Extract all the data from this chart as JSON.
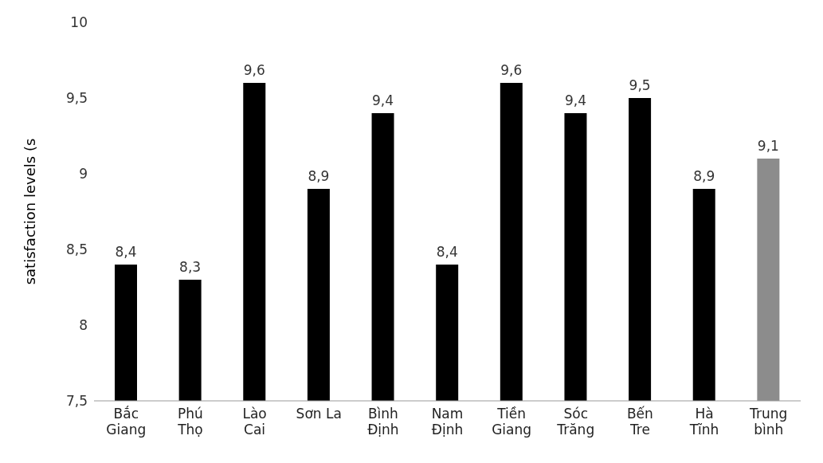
{
  "chart_data": {
    "type": "bar",
    "ylabel": "satisfaction levels (s",
    "categories": [
      "Bắc\nGiang",
      "Phú\nThọ",
      "Lào\nCai",
      "Sơn La",
      "Bình\nĐịnh",
      "Nam\nĐịnh",
      "Tiền\nGiang",
      "Sóc\nTrăng",
      "Bến\nTre",
      "Hà\nTĩnh",
      "Trung\nbình"
    ],
    "values": [
      8.4,
      8.3,
      9.6,
      8.9,
      9.4,
      8.4,
      9.6,
      9.4,
      9.5,
      8.9,
      9.1
    ],
    "value_labels": [
      "8,4",
      "8,3",
      "9,6",
      "8,9",
      "9,4",
      "8,4",
      "9,6",
      "9,4",
      "9,5",
      "8,9",
      "9,1"
    ],
    "colors": [
      "#000000",
      "#000000",
      "#000000",
      "#000000",
      "#000000",
      "#000000",
      "#000000",
      "#000000",
      "#000000",
      "#000000",
      "#8c8c8c"
    ],
    "ylim": [
      7.5,
      10
    ],
    "yticks": [
      {
        "value": 7.5,
        "label": "7,5"
      },
      8,
      {
        "value": 8.5,
        "label": "8,5"
      },
      9,
      {
        "value": 9.5,
        "label": "9,5"
      },
      10
    ],
    "grid": false,
    "legend": false
  }
}
